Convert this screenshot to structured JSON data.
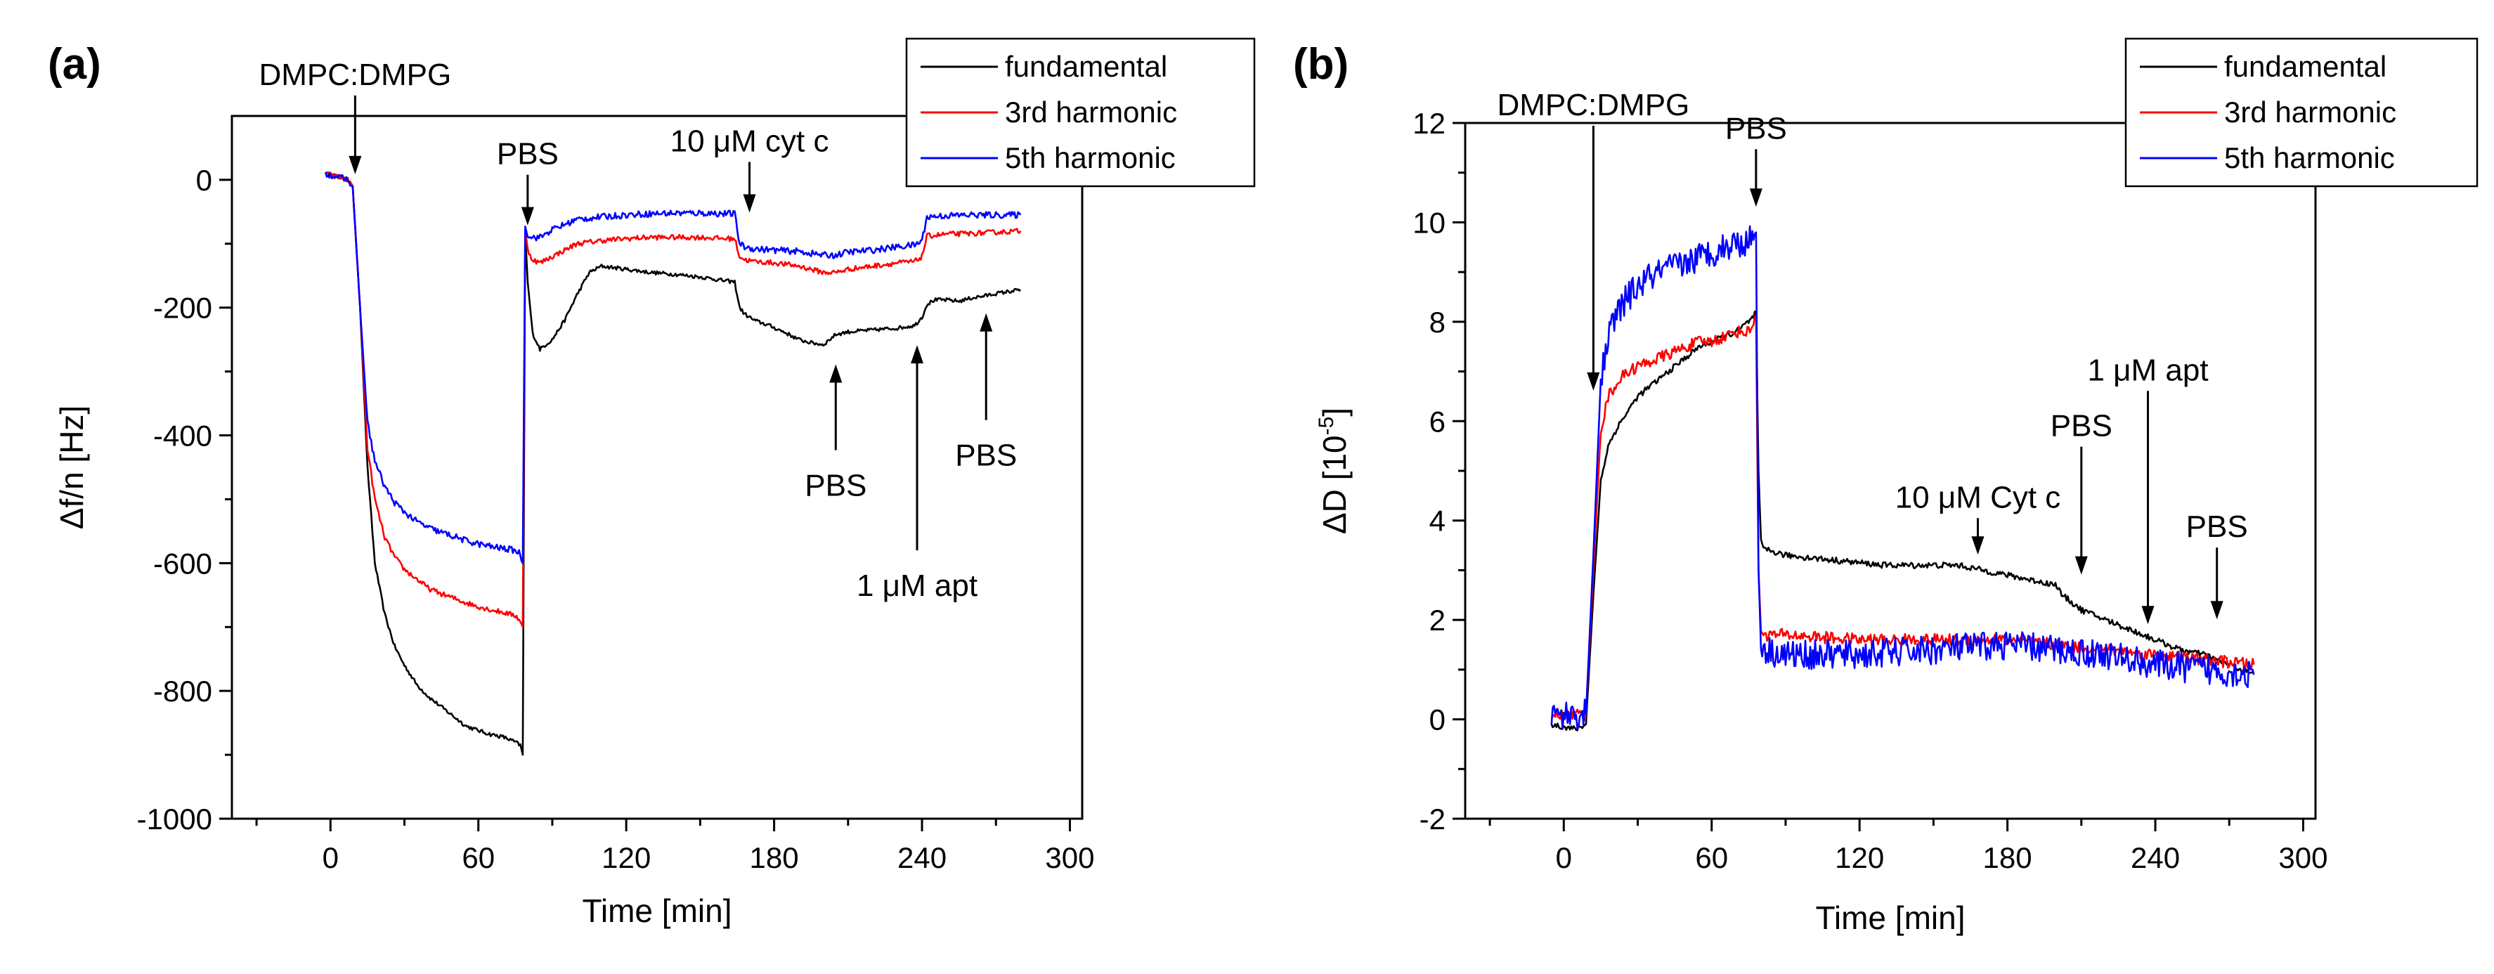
{
  "colors": {
    "fundamental": "#000000",
    "third": "#ff0000",
    "fifth": "#0000ff"
  },
  "chart_data": [
    {
      "type": "line",
      "panel_label": "(a)",
      "xlabel": "Time [min]",
      "ylabel": "Δf/n [Hz]",
      "xlim": [
        -40,
        305
      ],
      "ylim": [
        -1000,
        100
      ],
      "xticks": [
        0,
        60,
        120,
        180,
        240,
        300
      ],
      "yticks": [
        0,
        -200,
        -400,
        -600,
        -800,
        -1000
      ],
      "xtick_labels": [
        "0",
        "60",
        "120",
        "180",
        "240",
        "300"
      ],
      "ytick_labels": [
        "0",
        "-200",
        "-400",
        "-600",
        "-800",
        "-1000"
      ],
      "legend": {
        "position": "top-right",
        "entries": [
          "fundamental",
          "3rd harmonic",
          "5th harmonic"
        ]
      },
      "series": [
        {
          "name": "fundamental",
          "color": "#000000",
          "noise": 3,
          "x": [
            -2,
            7,
            9,
            12,
            15,
            18,
            22,
            26,
            30,
            35,
            40,
            45,
            50,
            55,
            60,
            65,
            70,
            75,
            77,
            78,
            79,
            80,
            82,
            85,
            90,
            95,
            100,
            105,
            110,
            120,
            130,
            140,
            150,
            160,
            164,
            166,
            168,
            172,
            178,
            185,
            190,
            195,
            200,
            205,
            210,
            220,
            230,
            237,
            240,
            242,
            245,
            250,
            255,
            260,
            265,
            270,
            275,
            280
          ],
          "y": [
            10,
            0,
            -10,
            -200,
            -450,
            -600,
            -680,
            -730,
            -760,
            -790,
            -810,
            -825,
            -840,
            -855,
            -862,
            -868,
            -872,
            -880,
            -885,
            -900,
            -80,
            -160,
            -240,
            -265,
            -250,
            -220,
            -180,
            -145,
            -135,
            -140,
            -145,
            -148,
            -152,
            -158,
            -160,
            -200,
            -210,
            -220,
            -228,
            -240,
            -250,
            -255,
            -258,
            -242,
            -238,
            -235,
            -232,
            -228,
            -215,
            -195,
            -188,
            -188,
            -190,
            -185,
            -182,
            -178,
            -175,
            -172
          ]
        },
        {
          "name": "3rd harmonic",
          "color": "#ff0000",
          "noise": 4,
          "x": [
            -2,
            7,
            9,
            12,
            15,
            18,
            22,
            26,
            30,
            35,
            40,
            45,
            50,
            55,
            60,
            65,
            70,
            75,
            77,
            78,
            79,
            80,
            82,
            85,
            90,
            95,
            100,
            110,
            120,
            130,
            140,
            150,
            160,
            164,
            166,
            168,
            172,
            180,
            190,
            200,
            205,
            210,
            220,
            230,
            237,
            240,
            242,
            250,
            260,
            270,
            280
          ],
          "y": [
            10,
            0,
            -10,
            -200,
            -420,
            -500,
            -560,
            -590,
            -610,
            -625,
            -640,
            -648,
            -655,
            -662,
            -668,
            -673,
            -677,
            -682,
            -690,
            -700,
            -80,
            -110,
            -125,
            -130,
            -120,
            -110,
            -100,
            -95,
            -92,
            -90,
            -90,
            -90,
            -92,
            -92,
            -120,
            -125,
            -128,
            -130,
            -135,
            -145,
            -145,
            -140,
            -135,
            -130,
            -128,
            -120,
            -88,
            -85,
            -84,
            -82,
            -80
          ]
        },
        {
          "name": "5th harmonic",
          "color": "#0000ff",
          "noise": 5,
          "x": [
            -2,
            7,
            9,
            12,
            15,
            18,
            22,
            26,
            30,
            35,
            40,
            45,
            50,
            55,
            60,
            65,
            70,
            75,
            77,
            78,
            79,
            80,
            82,
            85,
            90,
            95,
            100,
            110,
            120,
            130,
            140,
            150,
            160,
            164,
            166,
            168,
            172,
            180,
            190,
            200,
            205,
            210,
            220,
            230,
            237,
            240,
            242,
            250,
            260,
            270,
            280
          ],
          "y": [
            10,
            0,
            -10,
            -200,
            -380,
            -440,
            -480,
            -505,
            -520,
            -535,
            -545,
            -552,
            -558,
            -565,
            -570,
            -574,
            -577,
            -580,
            -585,
            -600,
            -75,
            -85,
            -90,
            -90,
            -78,
            -70,
            -62,
            -58,
            -55,
            -53,
            -52,
            -52,
            -53,
            -53,
            -100,
            -105,
            -108,
            -110,
            -112,
            -118,
            -118,
            -113,
            -110,
            -105,
            -102,
            -95,
            -58,
            -56,
            -55,
            -55,
            -55
          ]
        }
      ],
      "annotations": [
        {
          "text": "DMPC:DMPG",
          "x": 10,
          "y": 0,
          "label_above": true
        },
        {
          "text": "PBS",
          "x": 80,
          "y": -80,
          "label_above": true
        },
        {
          "text": "10 μM cyt c",
          "x": 170,
          "y": -60,
          "label_above": true
        },
        {
          "text": "PBS",
          "x": 205,
          "y": -280,
          "label_above": false
        },
        {
          "text": "1 μM apt",
          "x": 238,
          "y": -250,
          "label_above": false
        },
        {
          "text": "PBS",
          "x": 266,
          "y": -200,
          "label_above": false
        }
      ]
    },
    {
      "type": "line",
      "panel_label": "(b)",
      "xlabel": "Time [min]",
      "ylabel": "ΔD [10",
      "ylabel_sup": "-5",
      "ylabel_end": "]",
      "xlim": [
        -40,
        305
      ],
      "ylim": [
        -2,
        12
      ],
      "xticks": [
        0,
        60,
        120,
        180,
        240,
        300
      ],
      "yticks": [
        -2,
        0,
        2,
        4,
        6,
        8,
        10,
        12
      ],
      "xtick_labels": [
        "0",
        "60",
        "120",
        "180",
        "240",
        "300"
      ],
      "ytick_labels": [
        "-2",
        "0",
        "2",
        "4",
        "6",
        "8",
        "10",
        "12"
      ],
      "legend": {
        "position": "top-right",
        "entries": [
          "fundamental",
          "3rd harmonic",
          "5th harmonic"
        ]
      },
      "series": [
        {
          "name": "fundamental",
          "color": "#000000",
          "noise": 0.06,
          "x": [
            -5,
            5,
            9,
            12,
            15,
            18,
            22,
            26,
            30,
            35,
            40,
            45,
            50,
            55,
            60,
            65,
            70,
            75,
            77,
            78,
            79,
            80,
            81,
            83,
            90,
            100,
            110,
            120,
            130,
            140,
            150,
            160,
            170,
            180,
            190,
            200,
            202,
            205,
            210,
            220,
            230,
            240,
            250,
            260,
            270,
            280
          ],
          "y": [
            -0.1,
            -0.2,
            -0.1,
            2.5,
            4.8,
            5.5,
            5.9,
            6.2,
            6.5,
            6.7,
            6.9,
            7.1,
            7.3,
            7.5,
            7.6,
            7.7,
            7.8,
            8.0,
            8.1,
            8.2,
            5.0,
            3.6,
            3.4,
            3.4,
            3.3,
            3.25,
            3.2,
            3.15,
            3.1,
            3.1,
            3.1,
            3.1,
            3.0,
            2.9,
            2.8,
            2.7,
            2.5,
            2.4,
            2.2,
            2.0,
            1.8,
            1.6,
            1.4,
            1.3,
            1.1,
            0.9
          ]
        },
        {
          "name": "3rd harmonic",
          "color": "#ff0000",
          "noise": 0.12,
          "x": [
            -5,
            5,
            9,
            12,
            15,
            18,
            22,
            26,
            30,
            35,
            40,
            45,
            50,
            55,
            60,
            65,
            70,
            75,
            77,
            78,
            79,
            80,
            82,
            90,
            120,
            150,
            180,
            200,
            220,
            240,
            260,
            280
          ],
          "y": [
            0.1,
            0.1,
            0.1,
            3.0,
            5.8,
            6.5,
            6.8,
            7.0,
            7.1,
            7.2,
            7.3,
            7.4,
            7.5,
            7.6,
            7.6,
            7.7,
            7.8,
            7.8,
            8.0,
            8.0,
            3.0,
            1.8,
            1.7,
            1.7,
            1.6,
            1.6,
            1.6,
            1.5,
            1.4,
            1.3,
            1.2,
            1.1
          ]
        },
        {
          "name": "5th harmonic",
          "color": "#0000ff",
          "noise": 0.3,
          "x": [
            -5,
            5,
            9,
            12,
            15,
            18,
            22,
            26,
            30,
            35,
            40,
            45,
            50,
            55,
            60,
            65,
            70,
            75,
            77,
            78,
            79,
            80,
            82,
            90,
            120,
            150,
            180,
            200,
            220,
            240,
            260,
            280
          ],
          "y": [
            0.1,
            0.1,
            0.1,
            3.3,
            6.8,
            7.7,
            8.2,
            8.5,
            8.7,
            8.9,
            9.0,
            9.1,
            9.2,
            9.3,
            9.4,
            9.5,
            9.6,
            9.6,
            9.8,
            9.8,
            3.0,
            1.5,
            1.4,
            1.3,
            1.3,
            1.4,
            1.5,
            1.4,
            1.3,
            1.1,
            1.0,
            0.9
          ]
        }
      ],
      "annotations": [
        {
          "text": "DMPC:DMPG",
          "x": 12,
          "y": 6.5,
          "label_above": true
        },
        {
          "text": "PBS",
          "x": 78,
          "y": 10.2,
          "label_above": true
        },
        {
          "text": "10 μM Cyt c",
          "x": 168,
          "y": 3.2,
          "label_above": true
        },
        {
          "text": "PBS",
          "x": 210,
          "y": 2.8,
          "label_above": true
        },
        {
          "text": "1 μM apt",
          "x": 237,
          "y": 1.8,
          "label_above": true
        },
        {
          "text": "PBS",
          "x": 265,
          "y": 1.9,
          "label_above": true
        }
      ]
    }
  ]
}
